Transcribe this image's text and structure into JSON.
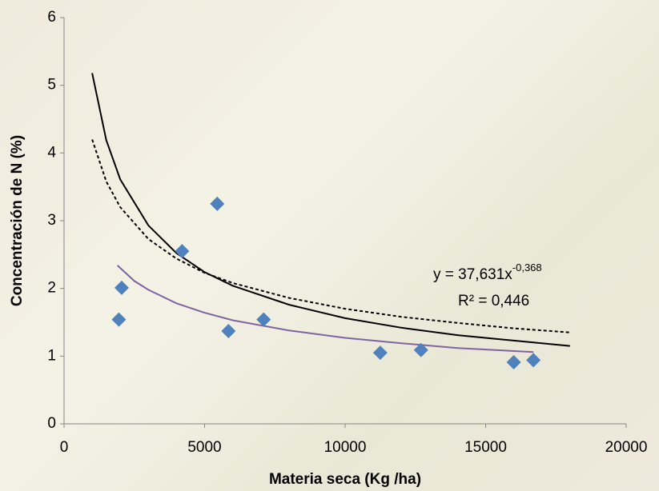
{
  "chart_data": {
    "type": "scatter",
    "xlabel": "Materia seca (Kg /ha)",
    "ylabel": "Concentración de N (%)",
    "xlim": [
      0,
      20000
    ],
    "xticks": [
      0,
      5000,
      10000,
      15000,
      20000
    ],
    "ylim": [
      0,
      6
    ],
    "yticks": [
      0,
      1,
      2,
      3,
      4,
      5,
      6
    ],
    "grid": false,
    "series": [
      {
        "mode": "markers",
        "marker": "diamond",
        "color": "#4f81bd",
        "x": [
          1950,
          2050,
          4200,
          5450,
          5850,
          7100,
          11250,
          12700,
          16000,
          16700
        ],
        "values": [
          1.54,
          2.01,
          2.55,
          3.25,
          1.37,
          1.54,
          1.05,
          1.09,
          0.91,
          0.94
        ]
      },
      {
        "mode": "line",
        "color": "#000000",
        "dash": false,
        "x": [
          1000,
          1500,
          2000,
          3000,
          4000,
          5000,
          6000,
          8000,
          10000,
          12000,
          14000,
          16000,
          18000
        ],
        "values": [
          5.18,
          4.19,
          3.61,
          2.93,
          2.52,
          2.24,
          2.04,
          1.76,
          1.56,
          1.42,
          1.31,
          1.23,
          1.15
        ]
      },
      {
        "mode": "line",
        "color": "#000000",
        "dash": true,
        "x": [
          1000,
          1500,
          2000,
          3000,
          4000,
          5000,
          6000,
          8000,
          10000,
          12000,
          14000,
          16000,
          18000
        ],
        "values": [
          4.2,
          3.58,
          3.2,
          2.73,
          2.44,
          2.23,
          2.08,
          1.86,
          1.7,
          1.58,
          1.49,
          1.41,
          1.35
        ]
      },
      {
        "mode": "line",
        "color": "#8064a2",
        "dash": false,
        "x": [
          1900,
          2500,
          3000,
          4000,
          5000,
          6000,
          8000,
          10000,
          12000,
          14000,
          16700
        ],
        "values": [
          2.34,
          2.11,
          1.98,
          1.78,
          1.64,
          1.53,
          1.38,
          1.27,
          1.19,
          1.12,
          1.06
        ]
      }
    ],
    "annotations": {
      "equation": "y = 37,631x",
      "exponent": "-0,368",
      "r2": "R² = 0,446"
    }
  }
}
